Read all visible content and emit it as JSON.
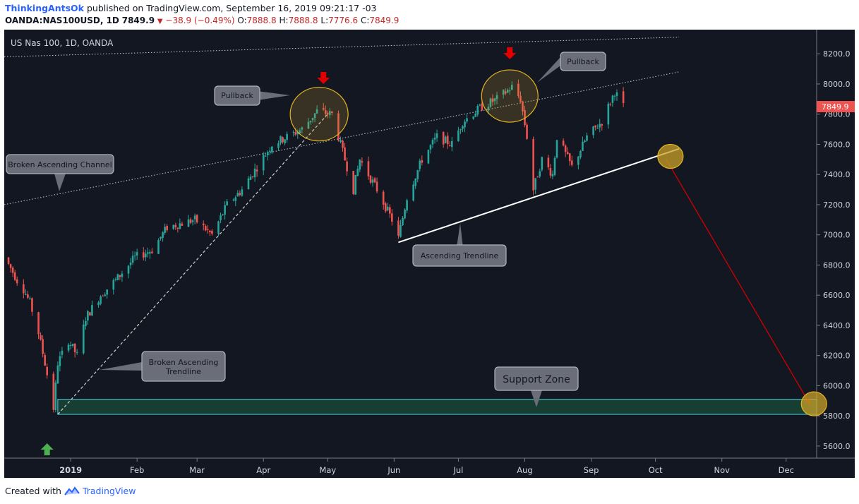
{
  "header": {
    "author": "ThinkingAntsOk",
    "published": "published on TradingView.com, September 16, 2019 09:21:17 -03",
    "symbol": "OANDA:NAS100USD, 1D",
    "price": "7849.9",
    "change": "−38.9 (−0.49%)",
    "o_label": "O:",
    "o_value": "7888.8",
    "h_label": "H:",
    "h_value": "7888.8",
    "l_label": "L:",
    "l_value": "7776.6",
    "c_label": "C:",
    "c_value": "7849.9"
  },
  "footer": {
    "created_with": "Created with",
    "brand": "TradingView"
  },
  "colors": {
    "background": "#131722",
    "up": "#26a69a",
    "down": "#ef5350",
    "current_price": "#ef5350",
    "support_fill": "#1b5e3f",
    "support_border": "#4dd0e1",
    "circle_fill": "#c9a227",
    "arrow_down": "#e00000",
    "arrow_up": "#4caf50",
    "projection": "#d00000",
    "callout_bg": "#6b6e78"
  },
  "chart_data": {
    "type": "candlestick",
    "title": "US Nas 100, 1D, OANDA",
    "ylim": [
      5520,
      8360
    ],
    "y_ticks": [
      "8200.0",
      "8000.0",
      "7800.0",
      "7600.0",
      "7400.0",
      "7200.0",
      "7000.0",
      "6800.0",
      "6600.0",
      "6400.0",
      "6200.0",
      "6000.0",
      "5800.0",
      "5600.0"
    ],
    "x_ticks": [
      "2019",
      "Feb",
      "Mar",
      "Apr",
      "May",
      "Jun",
      "Jul",
      "Aug",
      "Sep",
      "Oct",
      "Nov",
      "Dec"
    ],
    "current_price": "7849.9",
    "price_path": [
      [
        "2018-12-01",
        6850
      ],
      [
        "2018-12-04",
        6780
      ],
      [
        "2018-12-07",
        6700
      ],
      [
        "2018-12-10",
        6640
      ],
      [
        "2018-12-13",
        6550
      ],
      [
        "2018-12-17",
        6350
      ],
      [
        "2018-12-20",
        6150
      ],
      [
        "2018-12-24",
        5850
      ],
      [
        "2018-12-26",
        6150
      ],
      [
        "2018-12-31",
        6300
      ],
      [
        "2019-01-04",
        6200
      ],
      [
        "2019-01-08",
        6450
      ],
      [
        "2019-01-15",
        6600
      ],
      [
        "2019-01-22",
        6700
      ],
      [
        "2019-01-31",
        6850
      ],
      [
        "2019-02-08",
        6900
      ],
      [
        "2019-02-15",
        7050
      ],
      [
        "2019-02-28",
        7100
      ],
      [
        "2019-03-08",
        7000
      ],
      [
        "2019-03-15",
        7200
      ],
      [
        "2019-03-22",
        7300
      ],
      [
        "2019-03-29",
        7450
      ],
      [
        "2019-04-05",
        7600
      ],
      [
        "2019-04-12",
        7650
      ],
      [
        "2019-04-19",
        7700
      ],
      [
        "2019-04-26",
        7820
      ],
      [
        "2019-05-03",
        7800
      ],
      [
        "2019-05-08",
        7550
      ],
      [
        "2019-05-13",
        7300
      ],
      [
        "2019-05-16",
        7500
      ],
      [
        "2019-05-24",
        7300
      ],
      [
        "2019-05-31",
        7100
      ],
      [
        "2019-06-03",
        6980
      ],
      [
        "2019-06-07",
        7250
      ],
      [
        "2019-06-14",
        7500
      ],
      [
        "2019-06-21",
        7650
      ],
      [
        "2019-06-28",
        7600
      ],
      [
        "2019-07-03",
        7750
      ],
      [
        "2019-07-12",
        7850
      ],
      [
        "2019-07-19",
        7900
      ],
      [
        "2019-07-26",
        7980
      ],
      [
        "2019-07-30",
        7900
      ],
      [
        "2019-08-02",
        7650
      ],
      [
        "2019-08-05",
        7300
      ],
      [
        "2019-08-09",
        7500
      ],
      [
        "2019-08-14",
        7400
      ],
      [
        "2019-08-16",
        7650
      ],
      [
        "2019-08-23",
        7450
      ],
      [
        "2019-08-30",
        7650
      ],
      [
        "2019-09-06",
        7750
      ],
      [
        "2019-09-12",
        7950
      ],
      [
        "2019-09-16",
        7849.9
      ]
    ],
    "annotations": {
      "callouts": [
        {
          "text": "Broken Ascending Channel"
        },
        {
          "text": "Pullback"
        },
        {
          "text": "Pullback"
        },
        {
          "text": "Ascending Trendline"
        },
        {
          "text": "Broken Ascending Trendline"
        },
        {
          "text": "Support Zone"
        }
      ],
      "support_zone": {
        "from": 5810,
        "to": 5910
      },
      "ascending_trendline": [
        [
          "2019-06-03",
          6950
        ],
        [
          "2019-10-12",
          7570
        ]
      ],
      "broken_trendline": [
        [
          "2018-12-26",
          5810
        ],
        [
          "2019-05-01",
          7800
        ]
      ],
      "channel_line_upper": [
        [
          "2018-12-01",
          8180
        ],
        [
          "2019-10-12",
          8310
        ]
      ],
      "channel_line_lower": [
        [
          "2018-12-01",
          7200
        ],
        [
          "2019-10-12",
          8080
        ]
      ],
      "projection": [
        [
          "2019-10-06",
          7500
        ],
        [
          "2019-12-12",
          5880
        ]
      ]
    }
  }
}
